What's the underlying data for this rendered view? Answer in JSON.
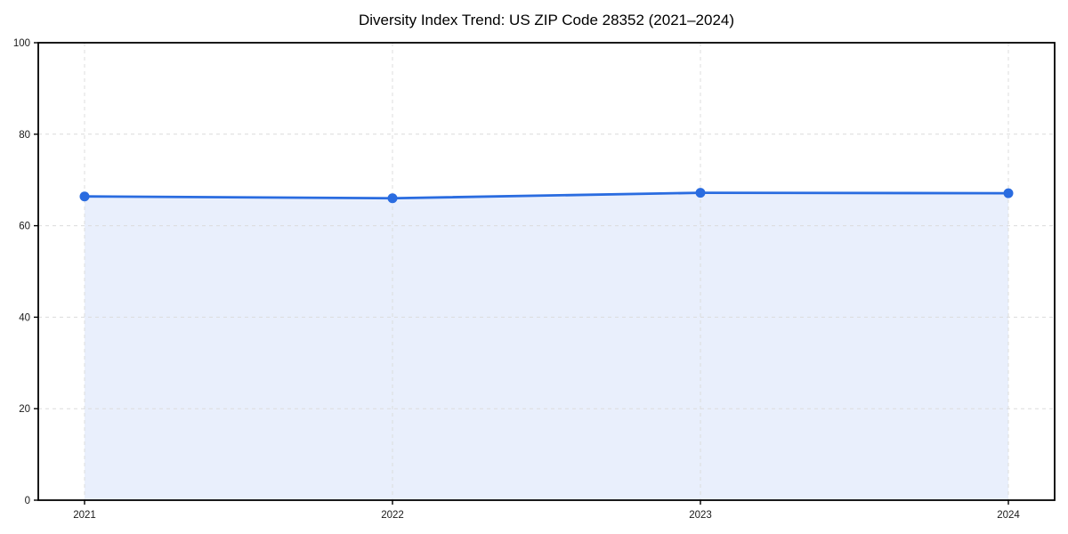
{
  "title": "Diversity Index Trend: US ZIP Code 28352 (2021–2024)",
  "chart_data": {
    "type": "area",
    "title": "Diversity Index Trend: US ZIP Code 28352 (2021–2024)",
    "x": [
      2021,
      2022,
      2023,
      2024
    ],
    "xticklabels": [
      "2021",
      "2022",
      "2023",
      "2024"
    ],
    "series": [
      {
        "name": "Diversity Index",
        "values": [
          66.4,
          66.0,
          67.2,
          67.1
        ]
      }
    ],
    "xlabel": "",
    "ylabel": "",
    "ylim": [
      0,
      100
    ],
    "yticks": [
      0,
      20,
      40,
      60,
      80,
      100
    ],
    "grid": true,
    "grid_style": "dashed",
    "legend": false,
    "colors": {
      "line": "#2a6ce0",
      "marker": "#2a6ce0",
      "fill": "#e9effc",
      "grid": "#dcdcdc",
      "spine": "#000000",
      "tick_label": "#1a1a1a",
      "title": "#000000",
      "background": "#ffffff"
    }
  }
}
